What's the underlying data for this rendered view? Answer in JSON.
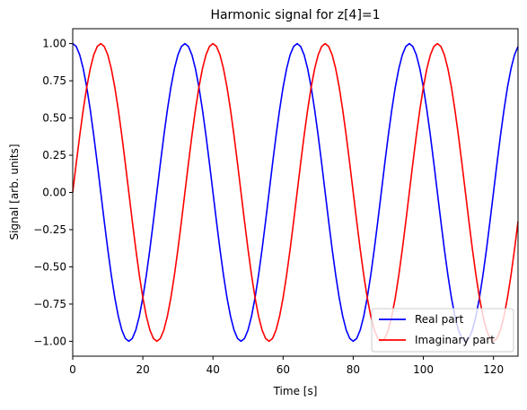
{
  "chart_data": {
    "type": "line",
    "title": "Harmonic signal for z[4]=1",
    "xlabel": "Time [s]",
    "ylabel": "Signal [arb. units]",
    "xlim": [
      0,
      127
    ],
    "ylim": [
      -1.1,
      1.1
    ],
    "x_ticks": [
      0,
      20,
      40,
      60,
      80,
      100,
      120
    ],
    "x_tick_labels": [
      "0",
      "20",
      "40",
      "60",
      "80",
      "100",
      "120"
    ],
    "y_ticks": [
      -1.0,
      -0.75,
      -0.5,
      -0.25,
      0.0,
      0.25,
      0.5,
      0.75,
      1.0
    ],
    "y_tick_labels": [
      "−1.00",
      "−0.75",
      "−0.50",
      "−0.25",
      "0.00",
      "0.25",
      "0.50",
      "0.75",
      "1.00"
    ],
    "grid": false,
    "legend_position": "lower-right",
    "x": {
      "start": 0,
      "end": 127,
      "step": 1
    },
    "series": [
      {
        "name": "Real part",
        "color": "#0000ff",
        "function": "cos(2*pi*4*t/128)"
      },
      {
        "name": "Imaginary part",
        "color": "#ff0000",
        "function": "sin(2*pi*4*t/128)"
      }
    ]
  }
}
